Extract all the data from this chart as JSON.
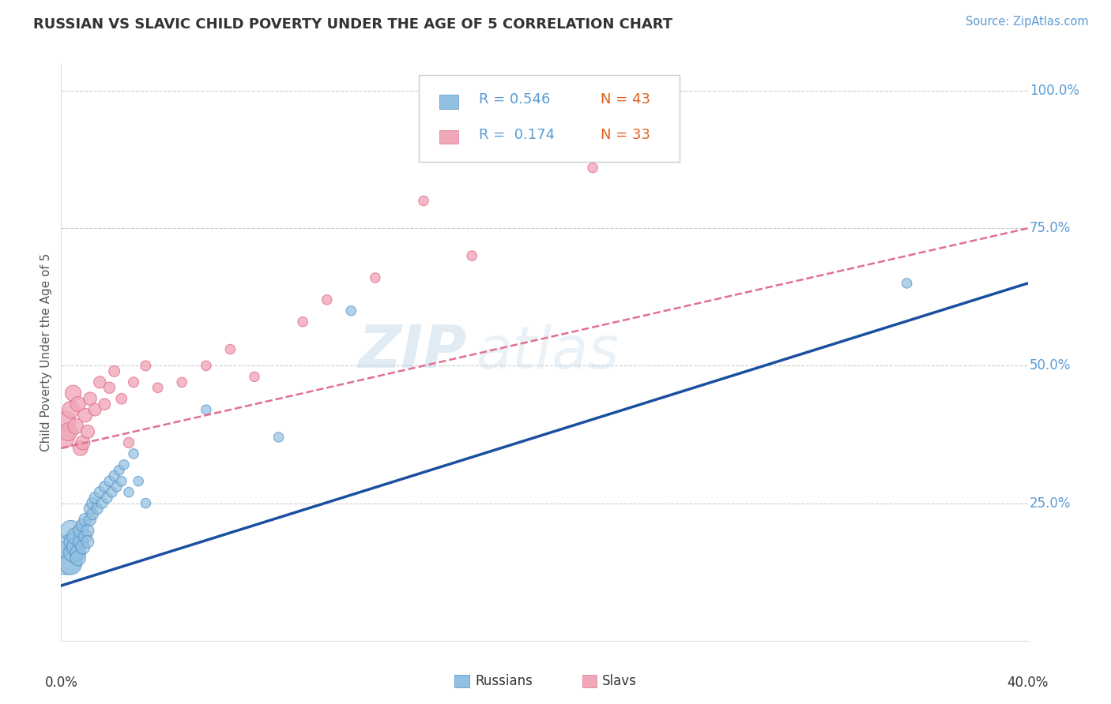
{
  "title": "RUSSIAN VS SLAVIC CHILD POVERTY UNDER THE AGE OF 5 CORRELATION CHART",
  "source": "Source: ZipAtlas.com",
  "ylabel": "Child Poverty Under the Age of 5",
  "xlim": [
    0.0,
    0.4
  ],
  "ylim": [
    0.0,
    1.05
  ],
  "watermark_zip": "ZIP",
  "watermark_atlas": "atlas",
  "legend_r1": "R = 0.546",
  "legend_n1": "N = 43",
  "legend_r2": "R =  0.174",
  "legend_n2": "N = 33",
  "russian_color": "#92c0e0",
  "russian_edge": "#5090c8",
  "slavic_color": "#f0a8b8",
  "slavic_edge": "#e07090",
  "russian_line_color": "#1a4fa0",
  "slavic_line_color": "#e07090",
  "grid_color": "#cccccc",
  "ytick_color": "#5b9bd5",
  "russian_x": [
    0.002,
    0.003,
    0.004,
    0.004,
    0.005,
    0.005,
    0.006,
    0.006,
    0.007,
    0.007,
    0.008,
    0.008,
    0.009,
    0.009,
    0.01,
    0.01,
    0.011,
    0.011,
    0.012,
    0.012,
    0.013,
    0.013,
    0.014,
    0.015,
    0.016,
    0.017,
    0.018,
    0.019,
    0.02,
    0.021,
    0.022,
    0.023,
    0.024,
    0.025,
    0.026,
    0.028,
    0.03,
    0.032,
    0.035,
    0.06,
    0.09,
    0.12,
    0.35
  ],
  "russian_y": [
    0.15,
    0.17,
    0.14,
    0.2,
    0.16,
    0.18,
    0.17,
    0.19,
    0.16,
    0.15,
    0.18,
    0.2,
    0.17,
    0.21,
    0.19,
    0.22,
    0.2,
    0.18,
    0.24,
    0.22,
    0.25,
    0.23,
    0.26,
    0.24,
    0.27,
    0.25,
    0.28,
    0.26,
    0.29,
    0.27,
    0.3,
    0.28,
    0.31,
    0.29,
    0.32,
    0.27,
    0.34,
    0.29,
    0.25,
    0.42,
    0.37,
    0.6,
    0.65
  ],
  "russian_sizes": [
    900,
    500,
    400,
    350,
    300,
    280,
    260,
    240,
    200,
    190,
    180,
    170,
    160,
    150,
    140,
    135,
    130,
    125,
    120,
    115,
    110,
    108,
    105,
    102,
    100,
    98,
    96,
    94,
    92,
    90,
    88,
    86,
    84,
    82,
    80,
    80,
    80,
    80,
    80,
    80,
    80,
    80,
    80
  ],
  "slavic_x": [
    0.001,
    0.002,
    0.003,
    0.004,
    0.005,
    0.006,
    0.007,
    0.008,
    0.009,
    0.01,
    0.011,
    0.012,
    0.014,
    0.016,
    0.018,
    0.02,
    0.022,
    0.025,
    0.028,
    0.03,
    0.035,
    0.04,
    0.05,
    0.06,
    0.07,
    0.08,
    0.1,
    0.11,
    0.13,
    0.15,
    0.17,
    0.2,
    0.22
  ],
  "slavic_y": [
    0.37,
    0.4,
    0.38,
    0.42,
    0.45,
    0.39,
    0.43,
    0.35,
    0.36,
    0.41,
    0.38,
    0.44,
    0.42,
    0.47,
    0.43,
    0.46,
    0.49,
    0.44,
    0.36,
    0.47,
    0.5,
    0.46,
    0.47,
    0.5,
    0.53,
    0.48,
    0.58,
    0.62,
    0.66,
    0.8,
    0.7,
    0.95,
    0.86
  ],
  "slavic_sizes": [
    400,
    300,
    270,
    240,
    210,
    200,
    190,
    180,
    170,
    160,
    150,
    140,
    130,
    120,
    110,
    105,
    100,
    95,
    90,
    88,
    85,
    82,
    80,
    80,
    80,
    80,
    80,
    80,
    80,
    80,
    80,
    80,
    80
  ],
  "blue_line_x0": 0.0,
  "blue_line_y0": 0.1,
  "blue_line_x1": 0.4,
  "blue_line_y1": 0.65,
  "pink_line_x0": 0.0,
  "pink_line_y0": 0.35,
  "pink_line_x1": 0.4,
  "pink_line_y1": 0.75
}
